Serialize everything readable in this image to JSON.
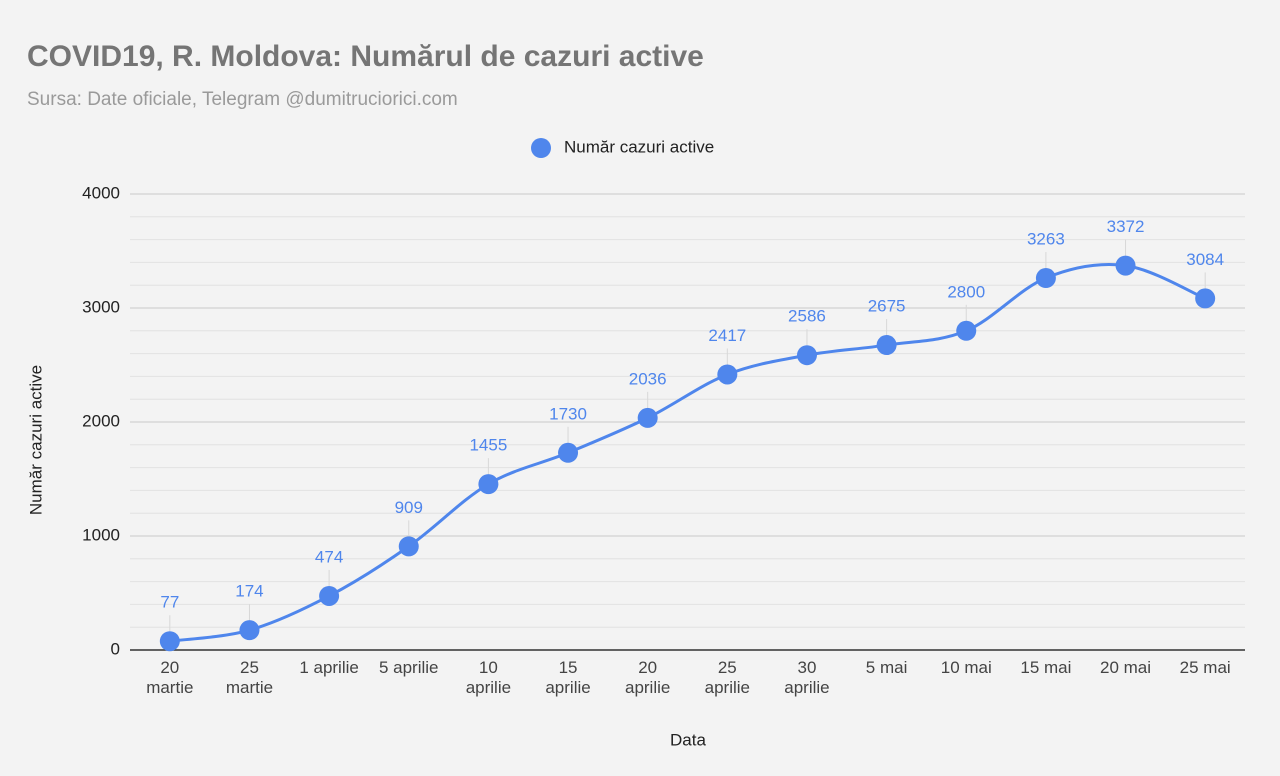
{
  "chart_data": {
    "type": "line",
    "title": "COVID19, R. Moldova: Numărul de cazuri active",
    "subtitle": "Sursa: Date oficiale, Telegram @dumitruciorici.com",
    "x_label": "Data",
    "y_label": "Număr cazuri active",
    "categories": [
      "20\nmartie",
      "25\nmartie",
      "1 aprilie",
      "5 aprilie",
      "10\naprilie",
      "15\naprilie",
      "20\naprilie",
      "25\naprilie",
      "30\naprilie",
      "5 mai",
      "10 mai",
      "15 mai",
      "20 mai",
      "25 mai"
    ],
    "series": [
      {
        "name": "Număr cazuri active",
        "color": "#4f86ec",
        "values": [
          77,
          174,
          474,
          909,
          1455,
          1730,
          2036,
          2417,
          2586,
          2675,
          2800,
          3263,
          3372,
          3084
        ]
      }
    ],
    "ylim": [
      0,
      4000
    ],
    "yticks": [
      0,
      1000,
      2000,
      3000,
      4000
    ],
    "grid": true,
    "smooth": true,
    "legend": "top",
    "data_labels": true
  }
}
